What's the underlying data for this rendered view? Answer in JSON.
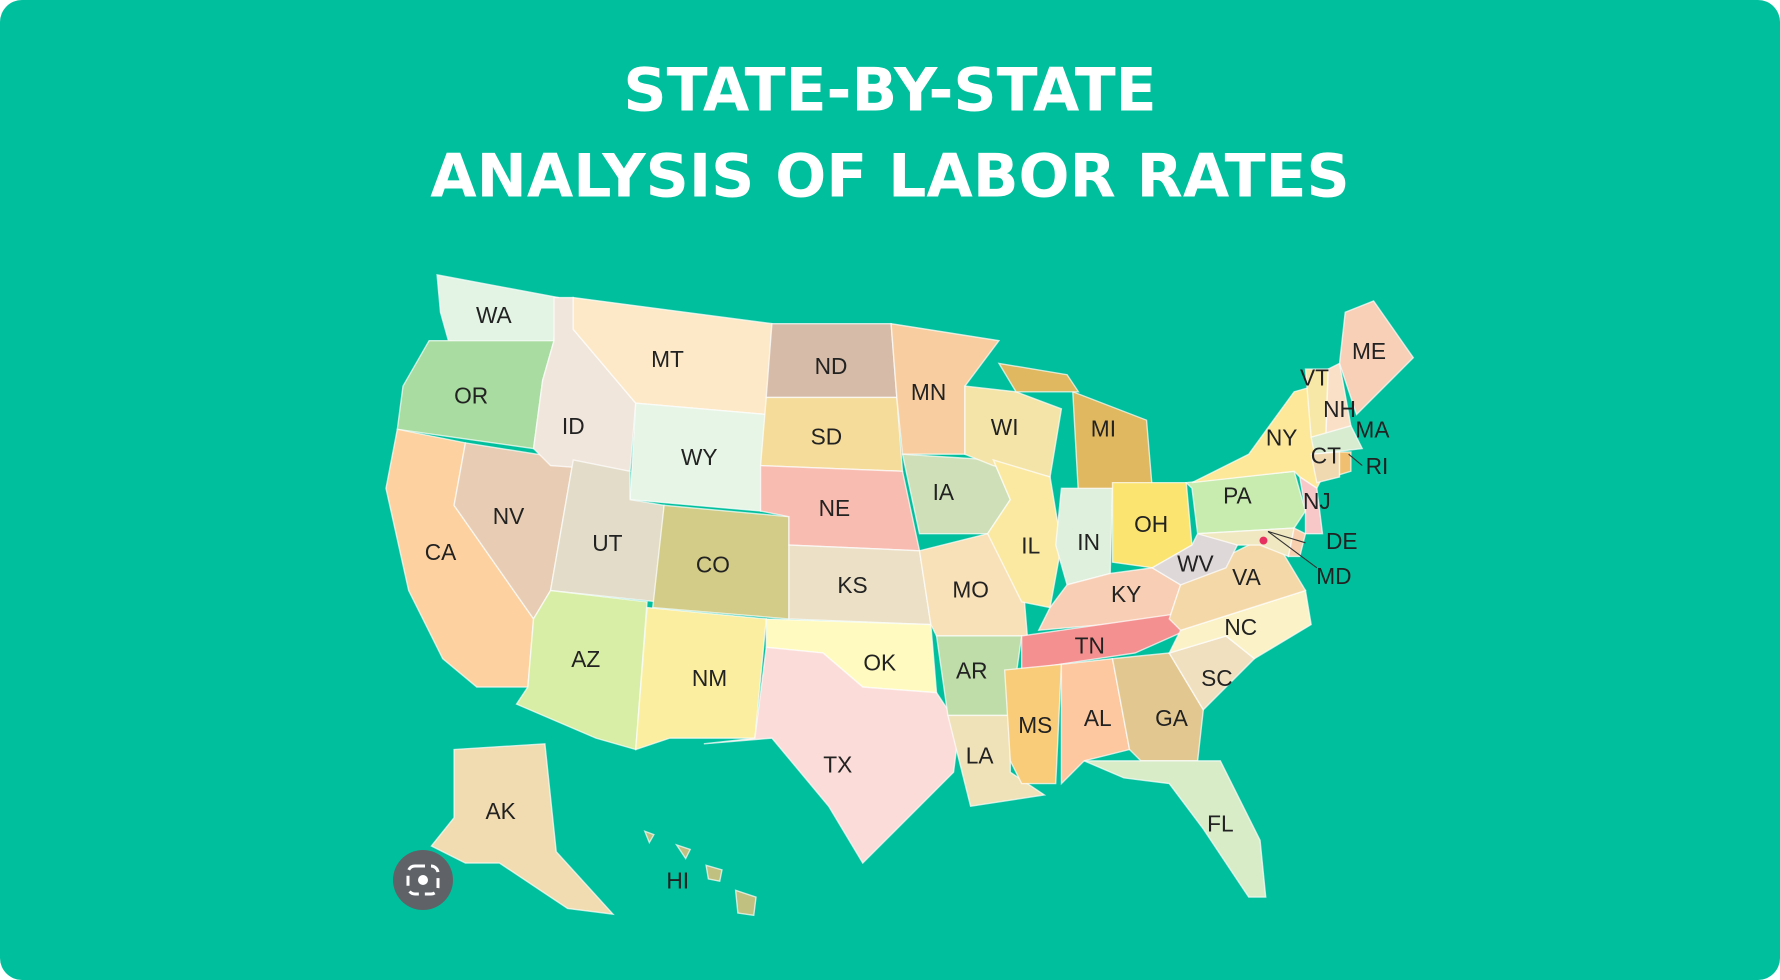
{
  "header": {
    "title_lines": [
      "STATE-BY-STATE",
      "ANALYSIS OF LABOR RATES"
    ]
  },
  "map": {
    "states": [
      "WA",
      "OR",
      "CA",
      "NV",
      "ID",
      "MT",
      "WY",
      "UT",
      "AZ",
      "CO",
      "NM",
      "ND",
      "SD",
      "NE",
      "KS",
      "OK",
      "TX",
      "MN",
      "IA",
      "MO",
      "AR",
      "LA",
      "WI",
      "IL",
      "MI",
      "IN",
      "OH",
      "KY",
      "TN",
      "MS",
      "AL",
      "GA",
      "FL",
      "SC",
      "NC",
      "VA",
      "WV",
      "PA",
      "NY",
      "NJ",
      "MD",
      "DE",
      "VT",
      "NH",
      "ME",
      "MA",
      "CT",
      "RI",
      "AK",
      "HI"
    ]
  }
}
